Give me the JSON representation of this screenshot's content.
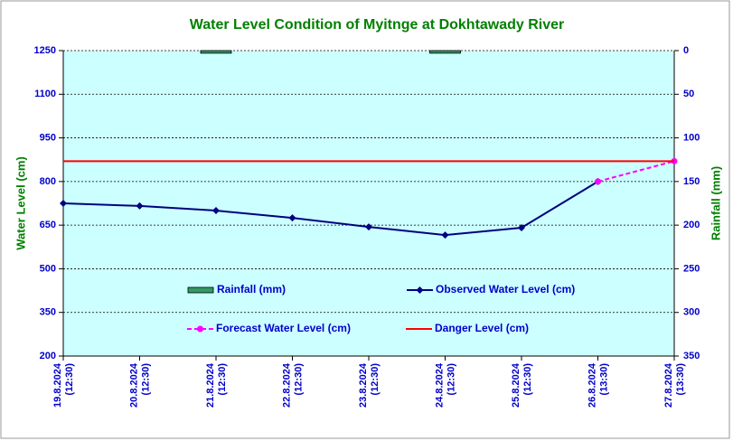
{
  "chart_data": {
    "type": "line",
    "title": "Water Level Condition of Myitnge at Dokhtawady River",
    "y_label": "Water Level (cm)",
    "y2_label": "Rainfall (mm)",
    "categories": [
      [
        "19.8.2024",
        "(12:30)"
      ],
      [
        "20.8.2024",
        "(12:30)"
      ],
      [
        "21.8.2024",
        "(12:30)"
      ],
      [
        "22.8.2024",
        "(12:30)"
      ],
      [
        "23.8.2024",
        "(12:30)"
      ],
      [
        "24.8.2024",
        "(12:30)"
      ],
      [
        "25.8.2024",
        "(12:30)"
      ],
      [
        "26.8.2024",
        "(13:30)"
      ],
      [
        "27.8.2024",
        "(13:30)"
      ]
    ],
    "ylim": [
      200,
      1250
    ],
    "yticks": [
      200,
      350,
      500,
      650,
      800,
      950,
      1100,
      1250
    ],
    "y2lim": [
      350,
      0
    ],
    "y2ticks": [
      0,
      50,
      100,
      150,
      200,
      250,
      300,
      350
    ],
    "grid": true,
    "series": [
      {
        "name": "Rainfall (mm)",
        "type": "bar",
        "axis": "y2",
        "color": "#339966",
        "values": [
          0,
          0,
          3,
          0,
          0,
          3,
          0,
          0,
          0
        ]
      },
      {
        "name": "Observed Water Level (cm)",
        "type": "line",
        "color": "#000080",
        "marker": "diamond",
        "values": [
          725,
          716,
          700,
          675,
          644,
          616,
          641,
          800,
          null
        ]
      },
      {
        "name": "Forecast Water Level (cm)",
        "type": "line",
        "color": "#ff00ff",
        "marker": "circle",
        "dashed": true,
        "values": [
          null,
          null,
          null,
          null,
          null,
          null,
          null,
          800,
          870
        ]
      },
      {
        "name": "Danger Level (cm)",
        "type": "line",
        "color": "#ff0000",
        "values": [
          870,
          870,
          870,
          870,
          870,
          870,
          870,
          870,
          870
        ]
      }
    ]
  }
}
